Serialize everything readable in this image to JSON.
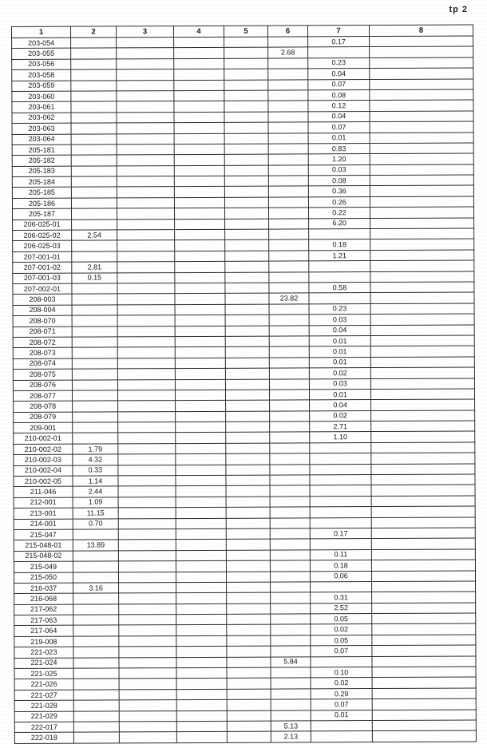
{
  "page": {
    "label": "tp 2",
    "paper_color": "#ffffff",
    "ink_color": "#1c1c1c"
  },
  "table": {
    "headers": [
      "1",
      "2",
      "3",
      "4",
      "5",
      "6",
      "7",
      "8"
    ],
    "rows": [
      [
        "203-054",
        "",
        "",
        "",
        "",
        "",
        "0.17",
        ""
      ],
      [
        "203-055",
        "",
        "",
        "",
        "",
        "2.68",
        "",
        ""
      ],
      [
        "203-056",
        "",
        "",
        "",
        "",
        "",
        "0.23",
        ""
      ],
      [
        "203-058",
        "",
        "",
        "",
        "",
        "",
        "0.04",
        ""
      ],
      [
        "203-059",
        "",
        "",
        "",
        "",
        "",
        "0.07",
        ""
      ],
      [
        "203-060",
        "",
        "",
        "",
        "",
        "",
        "0.08",
        ""
      ],
      [
        "203-061",
        "",
        "",
        "",
        "",
        "",
        "0.12",
        ""
      ],
      [
        "203-062",
        "",
        "",
        "",
        "",
        "",
        "0.04",
        ""
      ],
      [
        "203-063",
        "",
        "",
        "",
        "",
        "",
        "0.07",
        ""
      ],
      [
        "203-064",
        "",
        "",
        "",
        "",
        "",
        "0.01",
        ""
      ],
      [
        "205-181",
        "",
        "",
        "",
        "",
        "",
        "0.83",
        ""
      ],
      [
        "205-182",
        "",
        "",
        "",
        "",
        "",
        "1.20",
        ""
      ],
      [
        "205-183",
        "",
        "",
        "",
        "",
        "",
        "0.03",
        ""
      ],
      [
        "205-184",
        "",
        "",
        "",
        "",
        "",
        "0.08",
        ""
      ],
      [
        "205-185",
        "",
        "",
        "",
        "",
        "",
        "0.36",
        ""
      ],
      [
        "205-186",
        "",
        "",
        "",
        "",
        "",
        "0.26",
        ""
      ],
      [
        "205-187",
        "",
        "",
        "",
        "",
        "",
        "0.22",
        ""
      ],
      [
        "206-025-01",
        "",
        "",
        "",
        "",
        "",
        "6.20",
        ""
      ],
      [
        "206-025-02",
        "2.54",
        "",
        "",
        "",
        "",
        "",
        ""
      ],
      [
        "206-025-03",
        "",
        "",
        "",
        "",
        "",
        "0.18",
        ""
      ],
      [
        "207-001-01",
        "",
        "",
        "",
        "",
        "",
        "1.21",
        ""
      ],
      [
        "207-001-02",
        "2.81",
        "",
        "",
        "",
        "",
        "",
        ""
      ],
      [
        "207-001-03",
        "0.15",
        "",
        "",
        "",
        "",
        "",
        ""
      ],
      [
        "207-002-01",
        "",
        "",
        "",
        "",
        "",
        "0.58",
        ""
      ],
      [
        "208-003",
        "",
        "",
        "",
        "",
        "23.82",
        "",
        ""
      ],
      [
        "208-004",
        "",
        "",
        "",
        "",
        "",
        "0.23",
        ""
      ],
      [
        "208-070",
        "",
        "",
        "",
        "",
        "",
        "0.03",
        ""
      ],
      [
        "208-071",
        "",
        "",
        "",
        "",
        "",
        "0.04",
        ""
      ],
      [
        "208-072",
        "",
        "",
        "",
        "",
        "",
        "0.01",
        ""
      ],
      [
        "208-073",
        "",
        "",
        "",
        "",
        "",
        "0.01",
        ""
      ],
      [
        "208-074",
        "",
        "",
        "",
        "",
        "",
        "0.01",
        ""
      ],
      [
        "208-075",
        "",
        "",
        "",
        "",
        "",
        "0.02",
        ""
      ],
      [
        "208-076",
        "",
        "",
        "",
        "",
        "",
        "0.03",
        ""
      ],
      [
        "208-077",
        "",
        "",
        "",
        "",
        "",
        "0.01",
        ""
      ],
      [
        "208-078",
        "",
        "",
        "",
        "",
        "",
        "0.04",
        ""
      ],
      [
        "208-079",
        "",
        "",
        "",
        "",
        "",
        "0.02",
        ""
      ],
      [
        "209-001",
        "",
        "",
        "",
        "",
        "",
        "2.71",
        ""
      ],
      [
        "210-002-01",
        "",
        "",
        "",
        "",
        "",
        "1.10",
        ""
      ],
      [
        "210-002-02",
        "1.79",
        "",
        "",
        "",
        "",
        "",
        ""
      ],
      [
        "210-002-03",
        "4.32",
        "",
        "",
        "",
        "",
        "",
        ""
      ],
      [
        "210-002-04",
        "0.33",
        "",
        "",
        "",
        "",
        "",
        ""
      ],
      [
        "210-002-05",
        "1.14",
        "",
        "",
        "",
        "",
        "",
        ""
      ],
      [
        "211-046",
        "2.44",
        "",
        "",
        "",
        "",
        "",
        ""
      ],
      [
        "212-001",
        "1.09",
        "",
        "",
        "",
        "",
        "",
        ""
      ],
      [
        "213-001",
        "11.15",
        "",
        "",
        "",
        "",
        "",
        ""
      ],
      [
        "214-001",
        "0.70",
        "",
        "",
        "",
        "",
        "",
        ""
      ],
      [
        "215-047",
        "",
        "",
        "",
        "",
        "",
        "0.17",
        ""
      ],
      [
        "215-048-01",
        "13.89",
        "",
        "",
        "",
        "",
        "",
        ""
      ],
      [
        "215-048-02",
        "",
        "",
        "",
        "",
        "",
        "0.11",
        ""
      ],
      [
        "215-049",
        "",
        "",
        "",
        "",
        "",
        "0.18",
        ""
      ],
      [
        "215-050",
        "",
        "",
        "",
        "",
        "",
        "0.06",
        ""
      ],
      [
        "216-037",
        "3.16",
        "",
        "",
        "",
        "",
        "",
        ""
      ],
      [
        "216-068",
        "",
        "",
        "",
        "",
        "",
        "0.31",
        ""
      ],
      [
        "217-062",
        "",
        "",
        "",
        "",
        "",
        "2.52",
        ""
      ],
      [
        "217-063",
        "",
        "",
        "",
        "",
        "",
        "0.05",
        ""
      ],
      [
        "217-064",
        "",
        "",
        "",
        "",
        "",
        "0.02",
        ""
      ],
      [
        "219-008",
        "",
        "",
        "",
        "",
        "",
        "0.05",
        ""
      ],
      [
        "221-023",
        "",
        "",
        "",
        "",
        "",
        "0.07",
        ""
      ],
      [
        "221-024",
        "",
        "",
        "",
        "",
        "5.84",
        "",
        ""
      ],
      [
        "221-025",
        "",
        "",
        "",
        "",
        "",
        "0.10",
        ""
      ],
      [
        "221-026",
        "",
        "",
        "",
        "",
        "",
        "0.02",
        ""
      ],
      [
        "221-027",
        "",
        "",
        "",
        "",
        "",
        "0.29",
        ""
      ],
      [
        "221-028",
        "",
        "",
        "",
        "",
        "",
        "0.07",
        ""
      ],
      [
        "221-029",
        "",
        "",
        "",
        "",
        "",
        "0.01",
        ""
      ],
      [
        "222-017",
        "",
        "",
        "",
        "",
        "5.13",
        "",
        ""
      ],
      [
        "222-018",
        "",
        "",
        "",
        "",
        "2.13",
        "",
        ""
      ]
    ]
  }
}
